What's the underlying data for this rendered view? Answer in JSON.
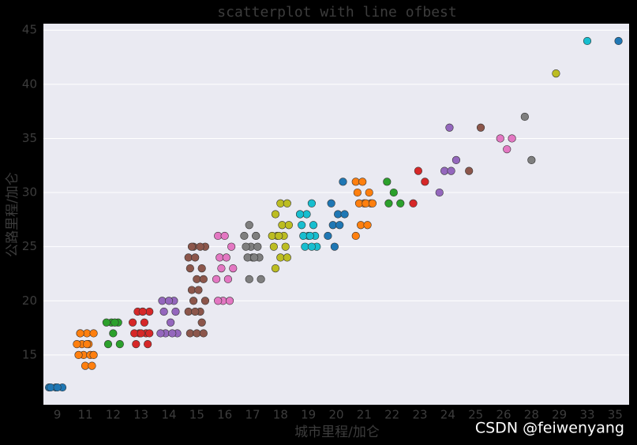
{
  "chart_data": {
    "type": "strip",
    "title": "scatterplot with line ofbest",
    "x_label": "城市里程/加仑",
    "y_label": "公路里程/加仑",
    "watermark": "CSDN @feiwenyang",
    "categories": [
      "9",
      "11",
      "12",
      "13",
      "14",
      "15",
      "16",
      "17",
      "18",
      "19",
      "20",
      "21",
      "22",
      "23",
      "24",
      "25",
      "26",
      "28",
      "29",
      "33",
      "35"
    ],
    "colors": [
      "#1f77b4",
      "#ff7f0e",
      "#2ca02c",
      "#d62728",
      "#9467bd",
      "#8c564b",
      "#e377c2",
      "#7f7f7f",
      "#bcbd22",
      "#17becf",
      "#1f77b4",
      "#ff7f0e",
      "#2ca02c",
      "#d62728",
      "#9467bd",
      "#8c564b",
      "#e377c2",
      "#7f7f7f",
      "#bcbd22",
      "#17becf",
      "#1f77b4"
    ],
    "groups": [
      {
        "values": [
          12,
          12,
          12,
          12,
          12
        ]
      },
      {
        "values": [
          17,
          17,
          17,
          16,
          16,
          16,
          15,
          15,
          15,
          14,
          14,
          17,
          16,
          15
        ]
      },
      {
        "values": [
          18,
          18,
          18,
          17,
          16,
          16,
          18
        ]
      },
      {
        "values": [
          19,
          19,
          19,
          18,
          18,
          17,
          17,
          17,
          17,
          16,
          16,
          19,
          17
        ]
      },
      {
        "values": [
          20,
          20,
          20,
          19,
          19,
          18,
          17,
          17,
          17,
          17
        ]
      },
      {
        "values": [
          25,
          25,
          25,
          24,
          24,
          23,
          23,
          22,
          22,
          21,
          21,
          20,
          20,
          19,
          19,
          19,
          18,
          17,
          17,
          17,
          25
        ]
      },
      {
        "values": [
          26,
          26,
          25,
          24,
          24,
          23,
          23,
          22,
          22,
          20,
          20,
          20
        ]
      },
      {
        "values": [
          27,
          26,
          26,
          25,
          25,
          25,
          24,
          24,
          24,
          24,
          22,
          22,
          26
        ]
      },
      {
        "values": [
          29,
          29,
          28,
          27,
          27,
          26,
          26,
          26,
          26,
          25,
          25,
          24,
          24,
          23
        ]
      },
      {
        "values": [
          29,
          28,
          28,
          27,
          27,
          26,
          26,
          26,
          26,
          25,
          25,
          25,
          28
        ]
      },
      {
        "values": [
          31,
          29,
          28,
          28,
          27,
          27,
          26,
          25
        ]
      },
      {
        "values": [
          31,
          31,
          30,
          30,
          29,
          29,
          29,
          29,
          29,
          27,
          27,
          26
        ]
      },
      {
        "values": [
          31,
          30,
          29,
          29
        ]
      },
      {
        "values": [
          32,
          31,
          29
        ]
      },
      {
        "values": [
          36,
          33,
          32,
          32,
          30
        ]
      },
      {
        "values": [
          36,
          32
        ]
      },
      {
        "values": [
          35,
          35,
          34
        ]
      },
      {
        "values": [
          37,
          33
        ]
      },
      {
        "values": [
          41
        ]
      },
      {
        "values": [
          44
        ]
      },
      {
        "values": [
          44
        ]
      }
    ],
    "ylim": [
      10.4,
      45.6
    ],
    "yticks": [
      15,
      20,
      25,
      30,
      35,
      40,
      45
    ],
    "grid": true
  }
}
